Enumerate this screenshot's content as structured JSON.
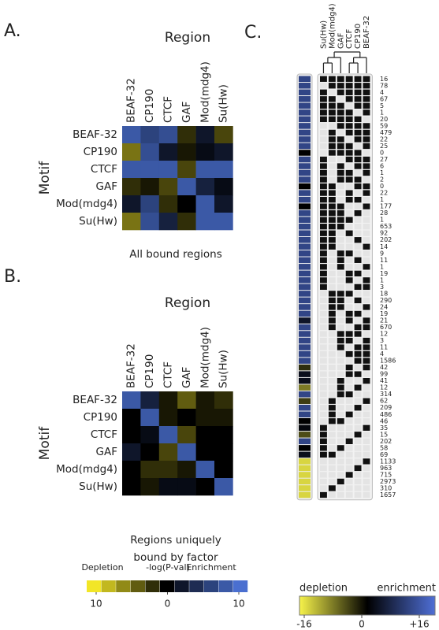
{
  "chart_data": [
    {
      "type": "heatmap",
      "panel_label": "A.",
      "title": "Region",
      "ylabel": "Motif",
      "caption": [
        "All bound regions"
      ],
      "columns": [
        "BEAF-32",
        "CP190",
        "CTCF",
        "GAF",
        "Mod(mdg4)",
        "Su(Hw)"
      ],
      "rows": [
        "BEAF-32",
        "CP190",
        "CTCF",
        "GAF",
        "Mod(mdg4)",
        "Su(Hw)"
      ],
      "values": [
        [
          8,
          6,
          7,
          -2,
          2,
          -3
        ],
        [
          -5,
          7,
          2,
          -1,
          1,
          2
        ],
        [
          8,
          8,
          8,
          -3,
          8,
          8
        ],
        [
          -2,
          -1,
          -3,
          8,
          3,
          1
        ],
        [
          2,
          6,
          -2,
          0,
          8,
          2
        ],
        [
          -5,
          7,
          3,
          -2,
          8,
          8
        ]
      ],
      "zlim": [
        -10,
        10
      ],
      "low_color": "#f2e627",
      "zero_color": "#000000",
      "high_color": "#4a6fd0"
    },
    {
      "type": "heatmap",
      "panel_label": "B.",
      "title": "Region",
      "ylabel": "Motif",
      "caption": [
        "Regions uniquely",
        "bound by factor"
      ],
      "columns": [
        "BEAF-32",
        "CP190",
        "CTCF",
        "GAF",
        "Mod(mdg4)",
        "Su(Hw)"
      ],
      "rows": [
        "BEAF-32",
        "CP190",
        "CTCF",
        "GAF",
        "Mod(mdg4)",
        "Su(Hw)"
      ],
      "values": [
        [
          8,
          3,
          -1,
          -4,
          -1,
          -2
        ],
        [
          0,
          8,
          -1,
          0,
          -1,
          -1
        ],
        [
          0,
          1,
          8,
          -3,
          0,
          0
        ],
        [
          2,
          0,
          -3,
          8,
          0,
          0
        ],
        [
          0,
          -2,
          -2,
          -1,
          8,
          0
        ],
        [
          0,
          -1,
          1,
          1,
          0,
          8
        ]
      ],
      "zlim": [
        -10,
        10
      ],
      "low_color": "#f2e627",
      "zero_color": "#000000",
      "high_color": "#4a6fd0"
    },
    {
      "type": "colorbar",
      "labels": [
        "Depletion",
        "-log(P-val)",
        "Enrichment"
      ],
      "xlim": [
        -10,
        10
      ],
      "xticks": [
        {
          "value": -10,
          "label": "10"
        },
        0,
        10
      ],
      "low_color": "#f2e627",
      "zero_color": "#000000",
      "high_color": "#4a6fd0"
    },
    {
      "type": "binary_matrix",
      "panel_label": "C.",
      "columns": [
        "Su(Hw)",
        "Mod(mdg4)",
        "GAF",
        "CTCF",
        "CP190",
        "BEAF-32"
      ],
      "matrix": [
        [
          1,
          1,
          1,
          1,
          1,
          1
        ],
        [
          0,
          1,
          1,
          1,
          1,
          1
        ],
        [
          1,
          0,
          1,
          1,
          1,
          1
        ],
        [
          1,
          1,
          0,
          1,
          1,
          1
        ],
        [
          1,
          1,
          1,
          0,
          1,
          1
        ],
        [
          1,
          1,
          1,
          1,
          0,
          1
        ],
        [
          1,
          1,
          1,
          1,
          1,
          0
        ],
        [
          0,
          0,
          1,
          1,
          1,
          1
        ],
        [
          0,
          1,
          0,
          1,
          1,
          1
        ],
        [
          0,
          1,
          1,
          0,
          1,
          1
        ],
        [
          0,
          1,
          1,
          1,
          0,
          1
        ],
        [
          0,
          1,
          1,
          1,
          1,
          0
        ],
        [
          1,
          0,
          0,
          1,
          1,
          1
        ],
        [
          1,
          0,
          1,
          0,
          1,
          1
        ],
        [
          1,
          0,
          1,
          1,
          0,
          1
        ],
        [
          1,
          0,
          1,
          1,
          1,
          0
        ],
        [
          1,
          1,
          0,
          0,
          1,
          1
        ],
        [
          1,
          1,
          0,
          1,
          0,
          1
        ],
        [
          1,
          1,
          0,
          1,
          1,
          0
        ],
        [
          1,
          1,
          1,
          0,
          0,
          1
        ],
        [
          1,
          1,
          1,
          0,
          1,
          0
        ],
        [
          1,
          1,
          1,
          1,
          0,
          0
        ],
        [
          1,
          1,
          1,
          0,
          0,
          0
        ],
        [
          1,
          1,
          0,
          1,
          0,
          0
        ],
        [
          1,
          1,
          0,
          0,
          1,
          0
        ],
        [
          1,
          1,
          0,
          0,
          0,
          1
        ],
        [
          1,
          0,
          1,
          1,
          0,
          0
        ],
        [
          1,
          0,
          1,
          0,
          1,
          0
        ],
        [
          1,
          0,
          1,
          0,
          0,
          1
        ],
        [
          1,
          0,
          0,
          1,
          1,
          0
        ],
        [
          1,
          0,
          0,
          1,
          0,
          1
        ],
        [
          1,
          0,
          0,
          0,
          1,
          1
        ],
        [
          0,
          1,
          1,
          1,
          0,
          0
        ],
        [
          0,
          1,
          1,
          0,
          1,
          0
        ],
        [
          0,
          1,
          1,
          0,
          0,
          1
        ],
        [
          0,
          1,
          0,
          1,
          1,
          0
        ],
        [
          0,
          1,
          0,
          1,
          0,
          1
        ],
        [
          0,
          1,
          0,
          0,
          1,
          1
        ],
        [
          0,
          0,
          1,
          1,
          1,
          0
        ],
        [
          0,
          0,
          1,
          1,
          0,
          1
        ],
        [
          0,
          0,
          1,
          0,
          1,
          1
        ],
        [
          0,
          0,
          0,
          1,
          1,
          1
        ],
        [
          0,
          0,
          0,
          0,
          1,
          1
        ],
        [
          0,
          0,
          0,
          1,
          0,
          1
        ],
        [
          0,
          0,
          0,
          1,
          1,
          0
        ],
        [
          0,
          0,
          1,
          0,
          0,
          1
        ],
        [
          0,
          0,
          1,
          0,
          1,
          0
        ],
        [
          0,
          0,
          1,
          1,
          0,
          0
        ],
        [
          0,
          1,
          0,
          0,
          0,
          1
        ],
        [
          0,
          1,
          0,
          0,
          1,
          0
        ],
        [
          0,
          1,
          0,
          1,
          0,
          0
        ],
        [
          0,
          1,
          1,
          0,
          0,
          0
        ],
        [
          1,
          0,
          0,
          0,
          0,
          1
        ],
        [
          1,
          0,
          0,
          0,
          1,
          0
        ],
        [
          1,
          0,
          0,
          1,
          0,
          0
        ],
        [
          1,
          0,
          1,
          0,
          0,
          0
        ],
        [
          1,
          1,
          0,
          0,
          0,
          0
        ],
        [
          0,
          0,
          0,
          0,
          0,
          1
        ],
        [
          0,
          0,
          0,
          0,
          1,
          0
        ],
        [
          0,
          0,
          0,
          1,
          0,
          0
        ],
        [
          0,
          0,
          1,
          0,
          0,
          0
        ],
        [
          0,
          1,
          0,
          0,
          0,
          0
        ],
        [
          1,
          0,
          0,
          0,
          0,
          0
        ]
      ],
      "counts": [
        16,
        78,
        4,
        67,
        5,
        1,
        20,
        59,
        479,
        22,
        25,
        0,
        27,
        6,
        1,
        2,
        0,
        22,
        1,
        177,
        28,
        1,
        653,
        92,
        202,
        14,
        9,
        11,
        1,
        19,
        1,
        3,
        18,
        290,
        24,
        19,
        21,
        670,
        12,
        3,
        11,
        4,
        1586,
        42,
        99,
        41,
        12,
        314,
        62,
        209,
        486,
        46,
        35,
        15,
        202,
        58,
        69,
        1133,
        963,
        715,
        2973,
        310,
        1657
      ],
      "enrichment": [
        10,
        10,
        10,
        10,
        10,
        10,
        10,
        10,
        10,
        10,
        10,
        0,
        10,
        10,
        10,
        10,
        0,
        10,
        10,
        0,
        10,
        10,
        10,
        10,
        10,
        10,
        10,
        10,
        10,
        10,
        10,
        10,
        10,
        10,
        10,
        10,
        3,
        10,
        10,
        10,
        10,
        10,
        10,
        -3,
        2,
        2,
        -8,
        10,
        -4,
        10,
        10,
        0,
        1,
        -5,
        10,
        0,
        2,
        -14,
        -14,
        -14,
        -14,
        -14,
        -14
      ],
      "zlim": [
        -16,
        16
      ],
      "colorbar_labels": [
        "depletion",
        "enrichment"
      ],
      "colorbar_ticks": [
        -16,
        0,
        {
          "value": 16,
          "label": "+16"
        }
      ],
      "on_color": "#111111",
      "off_color": "#e4e4e4",
      "low_color": "#f7f34a",
      "zero_color": "#000000",
      "high_color": "#4f6fd6"
    }
  ]
}
